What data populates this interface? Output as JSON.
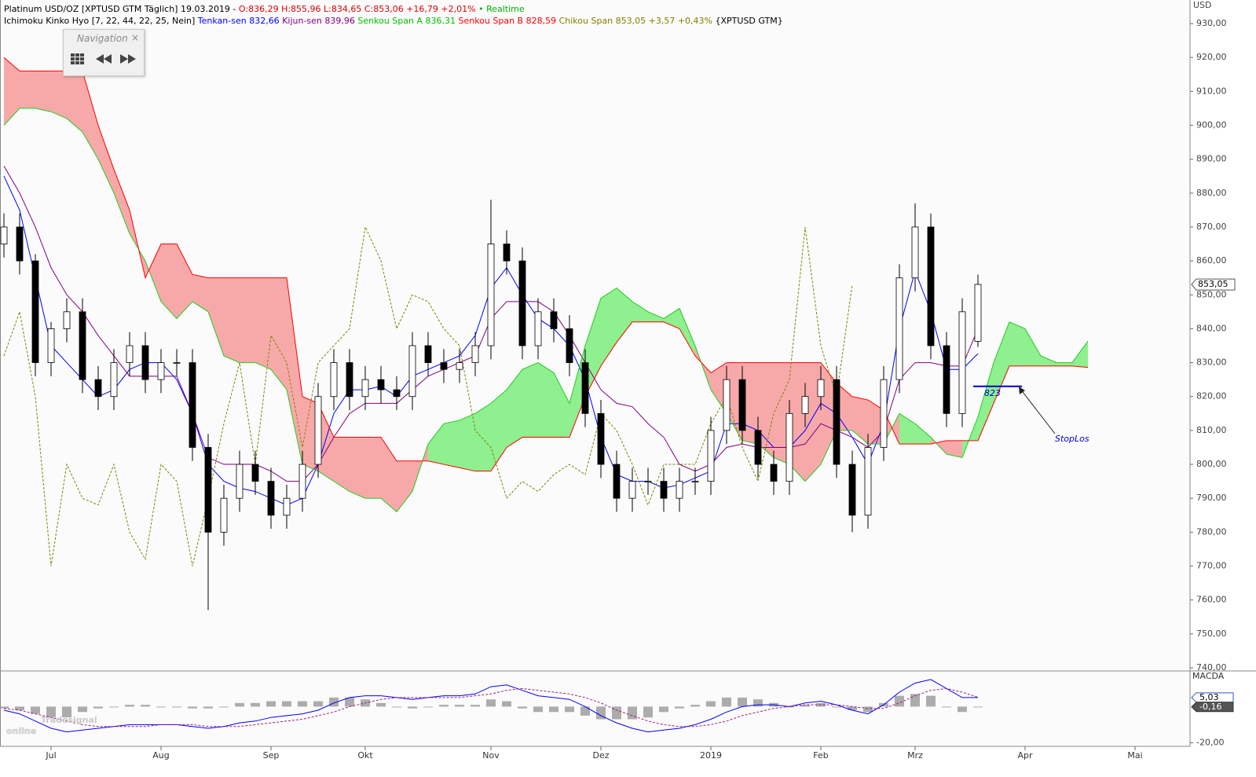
{
  "chart_data": {
    "type": "candlestick",
    "info": {
      "line1": [
        {
          "text": "Platinum USD/OZ [XPTUSD GTM Täglich] 19.03.2019 - ",
          "color": "#000000"
        },
        {
          "text": "O:836,29 H:855,96 L:834,65 C:853,06 +16,79 +2,01%",
          "color": "#e00000"
        },
        {
          "text": " • Realtime",
          "color": "#00b000"
        }
      ],
      "line2": [
        {
          "text": "Ichimoku Kinko Hyo [7, 22, 44, 22, 25, Nein] ",
          "color": "#000000"
        },
        {
          "text": "Tenkan-sen 832,66 ",
          "color": "#0000ff"
        },
        {
          "text": "Kijun-sen 839,96 ",
          "color": "#800080"
        },
        {
          "text": "Senkou Span A 836,31 ",
          "color": "#00c000"
        },
        {
          "text": "Senkou Span B 828,59 ",
          "color": "#ff0000"
        },
        {
          "text": "Chikou Span 853,05 +3,57 +0,43% ",
          "color": "#808000"
        },
        {
          "text": "{XPTUSD GTM}",
          "color": "#000000"
        }
      ]
    },
    "y_axis_label": "USD",
    "categories": [
      null,
      null,
      null,
      "Jul",
      null,
      null,
      null,
      null,
      null,
      null,
      "Aug",
      null,
      null,
      null,
      null,
      null,
      null,
      "Sep",
      null,
      null,
      null,
      null,
      null,
      "Okt",
      null,
      null,
      null,
      null,
      null,
      null,
      null,
      "Nov",
      null,
      null,
      null,
      null,
      null,
      null,
      "Dez",
      null,
      null,
      null,
      null,
      null,
      null,
      "2019",
      null,
      null,
      null,
      null,
      null,
      null,
      "Feb",
      null,
      null,
      null,
      null,
      null,
      "Mrz",
      null,
      null,
      null,
      null,
      null,
      null,
      "Apr",
      null,
      null,
      null,
      null,
      null,
      null,
      "Mai"
    ],
    "ylim": [
      740,
      930
    ],
    "yticks": [
      {
        "value": 740,
        "label": "740,00"
      },
      {
        "value": 750,
        "label": "750,00"
      },
      {
        "value": 760,
        "label": "760,00"
      },
      {
        "value": 770,
        "label": "770,00"
      },
      {
        "value": 780,
        "label": "780,00"
      },
      {
        "value": 790,
        "label": "790,00"
      },
      {
        "value": 800,
        "label": "800,00"
      },
      {
        "value": 810,
        "label": "810,00"
      },
      {
        "value": 820,
        "label": "820,00"
      },
      {
        "value": 830,
        "label": "830,00"
      },
      {
        "value": 840,
        "label": "840,00"
      },
      {
        "value": 850,
        "label": "850,00"
      },
      {
        "value": 860,
        "label": "860,00"
      },
      {
        "value": 870,
        "label": "870,00"
      },
      {
        "value": 880,
        "label": "880,00"
      },
      {
        "value": 890,
        "label": "890,00"
      },
      {
        "value": 900,
        "label": "900,00"
      },
      {
        "value": 910,
        "label": "910,00"
      },
      {
        "value": 920,
        "label": "920,00"
      },
      {
        "value": 930,
        "label": "930,00"
      }
    ],
    "candles": {
      "open": [
        865,
        870,
        860,
        830,
        840,
        845,
        825,
        820,
        830,
        835,
        825,
        830,
        830,
        805,
        780,
        790,
        800,
        795,
        785,
        790,
        800,
        820,
        830,
        820,
        825,
        822,
        820,
        835,
        830,
        828,
        830,
        835,
        865,
        860,
        835,
        845,
        840,
        830,
        815,
        800,
        790,
        795,
        795,
        790,
        795,
        795,
        810,
        825,
        810,
        800,
        795,
        815,
        820,
        825,
        800,
        785,
        805,
        825,
        855,
        870,
        835,
        815,
        836.29,
        null,
        null,
        null,
        null,
        null,
        null,
        null,
        null,
        null,
        null
      ],
      "high": [
        874,
        874,
        862,
        842,
        849,
        849,
        829,
        834,
        839,
        839,
        834,
        834,
        834,
        809,
        794,
        804,
        804,
        799,
        794,
        804,
        824,
        834,
        834,
        829,
        829,
        826,
        839,
        839,
        834,
        834,
        839,
        878,
        869,
        864,
        849,
        849,
        844,
        834,
        819,
        804,
        799,
        799,
        799,
        799,
        799,
        814,
        829,
        829,
        814,
        804,
        819,
        824,
        829,
        829,
        804,
        809,
        829,
        859,
        877,
        874,
        839,
        849,
        855.96,
        null,
        null,
        null,
        null,
        null,
        null,
        null,
        null,
        null,
        null
      ],
      "low": [
        861,
        856,
        826,
        826,
        836,
        821,
        816,
        816,
        826,
        821,
        821,
        826,
        801,
        757,
        776,
        786,
        791,
        781,
        781,
        786,
        796,
        816,
        816,
        816,
        818,
        816,
        816,
        826,
        824,
        824,
        826,
        831,
        856,
        831,
        831,
        836,
        826,
        811,
        796,
        786,
        786,
        791,
        786,
        786,
        791,
        791,
        806,
        806,
        796,
        791,
        791,
        811,
        816,
        796,
        780,
        781,
        801,
        821,
        851,
        831,
        811,
        811,
        834.65,
        null,
        null,
        null,
        null,
        null,
        null,
        null,
        null,
        null,
        null
      ],
      "close": [
        870,
        860,
        830,
        840,
        845,
        825,
        820,
        830,
        835,
        825,
        830,
        830,
        805,
        780,
        790,
        800,
        795,
        785,
        790,
        800,
        820,
        830,
        820,
        825,
        822,
        820,
        835,
        830,
        828,
        830,
        835,
        865,
        860,
        835,
        845,
        840,
        830,
        815,
        800,
        790,
        795,
        795,
        790,
        795,
        795,
        810,
        825,
        810,
        800,
        795,
        815,
        820,
        825,
        800,
        785,
        805,
        825,
        855,
        870,
        835,
        815,
        845,
        853.06,
        null,
        null,
        null,
        null,
        null,
        null,
        null,
        null,
        null,
        null
      ],
      "up_color": "#ffffff",
      "down_color": "#000000"
    },
    "series": [
      {
        "color": "#0000ff",
        "values": [
          885,
          875,
          855,
          835,
          830,
          825,
          820,
          822,
          828,
          830,
          830,
          825,
          815,
          800,
          795,
          793,
          792,
          790,
          788,
          790,
          800,
          815,
          822,
          822,
          823,
          820,
          826,
          828,
          830,
          832,
          838,
          852,
          858,
          850,
          843,
          840,
          835,
          825,
          808,
          797,
          795,
          795,
          793,
          794,
          796,
          798,
          812,
          812,
          810,
          805,
          805,
          810,
          818,
          815,
          808,
          800,
          812,
          840,
          857,
          845,
          828,
          828,
          832.66,
          null,
          null,
          null,
          null,
          null,
          null,
          null,
          null,
          null,
          null
        ]
      },
      {
        "color": "#800080",
        "values": [
          888,
          880,
          870,
          858,
          850,
          845,
          838,
          832,
          826,
          826,
          826,
          826,
          815,
          802,
          800,
          800,
          800,
          798,
          795,
          795,
          800,
          808,
          815,
          818,
          818,
          818,
          822,
          826,
          828,
          830,
          832,
          843,
          848,
          848,
          848,
          845,
          838,
          830,
          822,
          818,
          817,
          812,
          808,
          800,
          798,
          800,
          805,
          806,
          805,
          805,
          805,
          806,
          812,
          810,
          808,
          805,
          810,
          825,
          830,
          830,
          829,
          829,
          839.96,
          null,
          null,
          null,
          null,
          null,
          null,
          null,
          null,
          null,
          null
        ]
      },
      {
        "color": "#22cc22",
        "values": [
          900,
          905,
          905,
          904,
          902,
          898,
          890,
          880,
          868,
          860,
          848,
          843,
          848,
          845,
          832,
          830,
          830,
          828,
          822,
          800,
          798,
          795,
          792,
          790,
          790,
          786,
          792,
          806,
          812,
          813,
          815,
          818,
          822,
          828,
          830,
          827,
          818,
          835,
          849,
          852,
          848,
          845,
          843,
          846,
          835,
          822,
          815,
          807,
          806,
          802,
          800,
          795,
          800,
          810,
          810,
          806,
          806,
          815,
          812,
          808,
          803,
          802,
          814,
          830,
          842,
          840,
          832,
          830,
          830,
          836.31,
          null,
          null,
          null
        ]
      },
      {
        "color": "#ff0000",
        "values": [
          920,
          916,
          916,
          916,
          916,
          916,
          900,
          887,
          875,
          855,
          865,
          865,
          856,
          855,
          855,
          855,
          855,
          855,
          855,
          820,
          818,
          808,
          808,
          808,
          808,
          801,
          801,
          801,
          800,
          799,
          798,
          798,
          805,
          808,
          808,
          808,
          808,
          820,
          829,
          836,
          842,
          842,
          842,
          840,
          832,
          827,
          830,
          830,
          830,
          830,
          830,
          830,
          830,
          824,
          820,
          819,
          816,
          806,
          806,
          806,
          807,
          807,
          807,
          818,
          829,
          829,
          829,
          829,
          829,
          828.59,
          null,
          null,
          null
        ]
      },
      {
        "color": "#808000",
        "dashed": true,
        "values": [
          832,
          845,
          820,
          770,
          800,
          790,
          788,
          800,
          780,
          772,
          800,
          795,
          770,
          790,
          812,
          830,
          800,
          838,
          830,
          805,
          830,
          835,
          840,
          870,
          860,
          840,
          850,
          848,
          840,
          835,
          810,
          805,
          790,
          795,
          792,
          797,
          800,
          797,
          815,
          810,
          800,
          788,
          800,
          800,
          800,
          812,
          820,
          805,
          795,
          815,
          825,
          870,
          835,
          820,
          853.05,
          null,
          null,
          null,
          null,
          null,
          null,
          null,
          null,
          null,
          null,
          null,
          null,
          null,
          null,
          null,
          null,
          null,
          null
        ]
      }
    ],
    "cloud_colors": {
      "up": "#8ef08e",
      "down": "#f7a9a9"
    },
    "price_badge": {
      "value": 853.05,
      "label": "853,05"
    },
    "stop": {
      "value": 823,
      "label": "823",
      "note": "StopLos",
      "color": "#0000cc"
    },
    "macd": {
      "title": "MACDA",
      "ylim": [
        -22,
        18
      ],
      "yticks": [
        {
          "value": -20,
          "label": "-20,00"
        }
      ],
      "series": [
        {
          "color": "#0000ff",
          "values": [
            -2,
            -4,
            -8,
            -12,
            -14,
            -13,
            -12,
            -11,
            -10,
            -10,
            -10,
            -10,
            -11,
            -12,
            -11,
            -9,
            -8,
            -6,
            -5,
            -4,
            -2,
            2,
            5,
            6,
            6,
            5,
            4,
            5,
            6,
            6,
            7,
            11,
            12,
            9,
            6,
            5,
            4,
            0,
            -5,
            -9,
            -12,
            -14,
            -13,
            -12,
            -10,
            -7,
            -3,
            0,
            1,
            1,
            0,
            2,
            3,
            1,
            -2,
            -4,
            1,
            8,
            13,
            15,
            10,
            5,
            5.03,
            null,
            null,
            null,
            null,
            null,
            null,
            null,
            null,
            null,
            null
          ]
        },
        {
          "color": "#a0207a",
          "dashed": true,
          "values": [
            -1,
            -2,
            -4,
            -6,
            -8,
            -10,
            -11,
            -11,
            -11,
            -11,
            -10,
            -10,
            -10,
            -11,
            -11,
            -11,
            -10,
            -9,
            -8,
            -7,
            -5,
            -3,
            0,
            2,
            4,
            5,
            5,
            5,
            5,
            5,
            6,
            7,
            9,
            10,
            9,
            8,
            7,
            5,
            2,
            -2,
            -5,
            -8,
            -10,
            -11,
            -11,
            -10,
            -8,
            -5,
            -3,
            -1,
            0,
            1,
            1,
            1,
            0,
            -1,
            -1,
            2,
            6,
            9,
            10,
            8,
            5.19,
            null,
            null,
            null,
            null,
            null,
            null,
            null,
            null,
            null,
            null
          ]
        }
      ],
      "histogram": {
        "color": "#8a8a8a",
        "values": [
          -1,
          -2,
          -4,
          -6,
          -6,
          -3,
          -1,
          0,
          1,
          1,
          0,
          0,
          -1,
          -1,
          0,
          2,
          2,
          3,
          3,
          3,
          3,
          5,
          5,
          4,
          2,
          0,
          -1,
          0,
          1,
          1,
          1,
          4,
          3,
          -1,
          -3,
          -3,
          -3,
          -5,
          -7,
          -7,
          -7,
          -6,
          -3,
          -1,
          1,
          3,
          5,
          5,
          4,
          2,
          0,
          1,
          2,
          0,
          -2,
          -3,
          2,
          6,
          7,
          6,
          0,
          -3,
          -0.16,
          null,
          null,
          null,
          null,
          null,
          null,
          null,
          null,
          null,
          null
        ]
      },
      "labels": [
        {
          "value": 5.03,
          "label": "5,03"
        },
        {
          "value": -0.16,
          "label": "-0,16"
        }
      ]
    },
    "watermark": [
      "Tradesignal",
      "online"
    ]
  },
  "navigation": {
    "title": "Navigation",
    "close": "×"
  }
}
